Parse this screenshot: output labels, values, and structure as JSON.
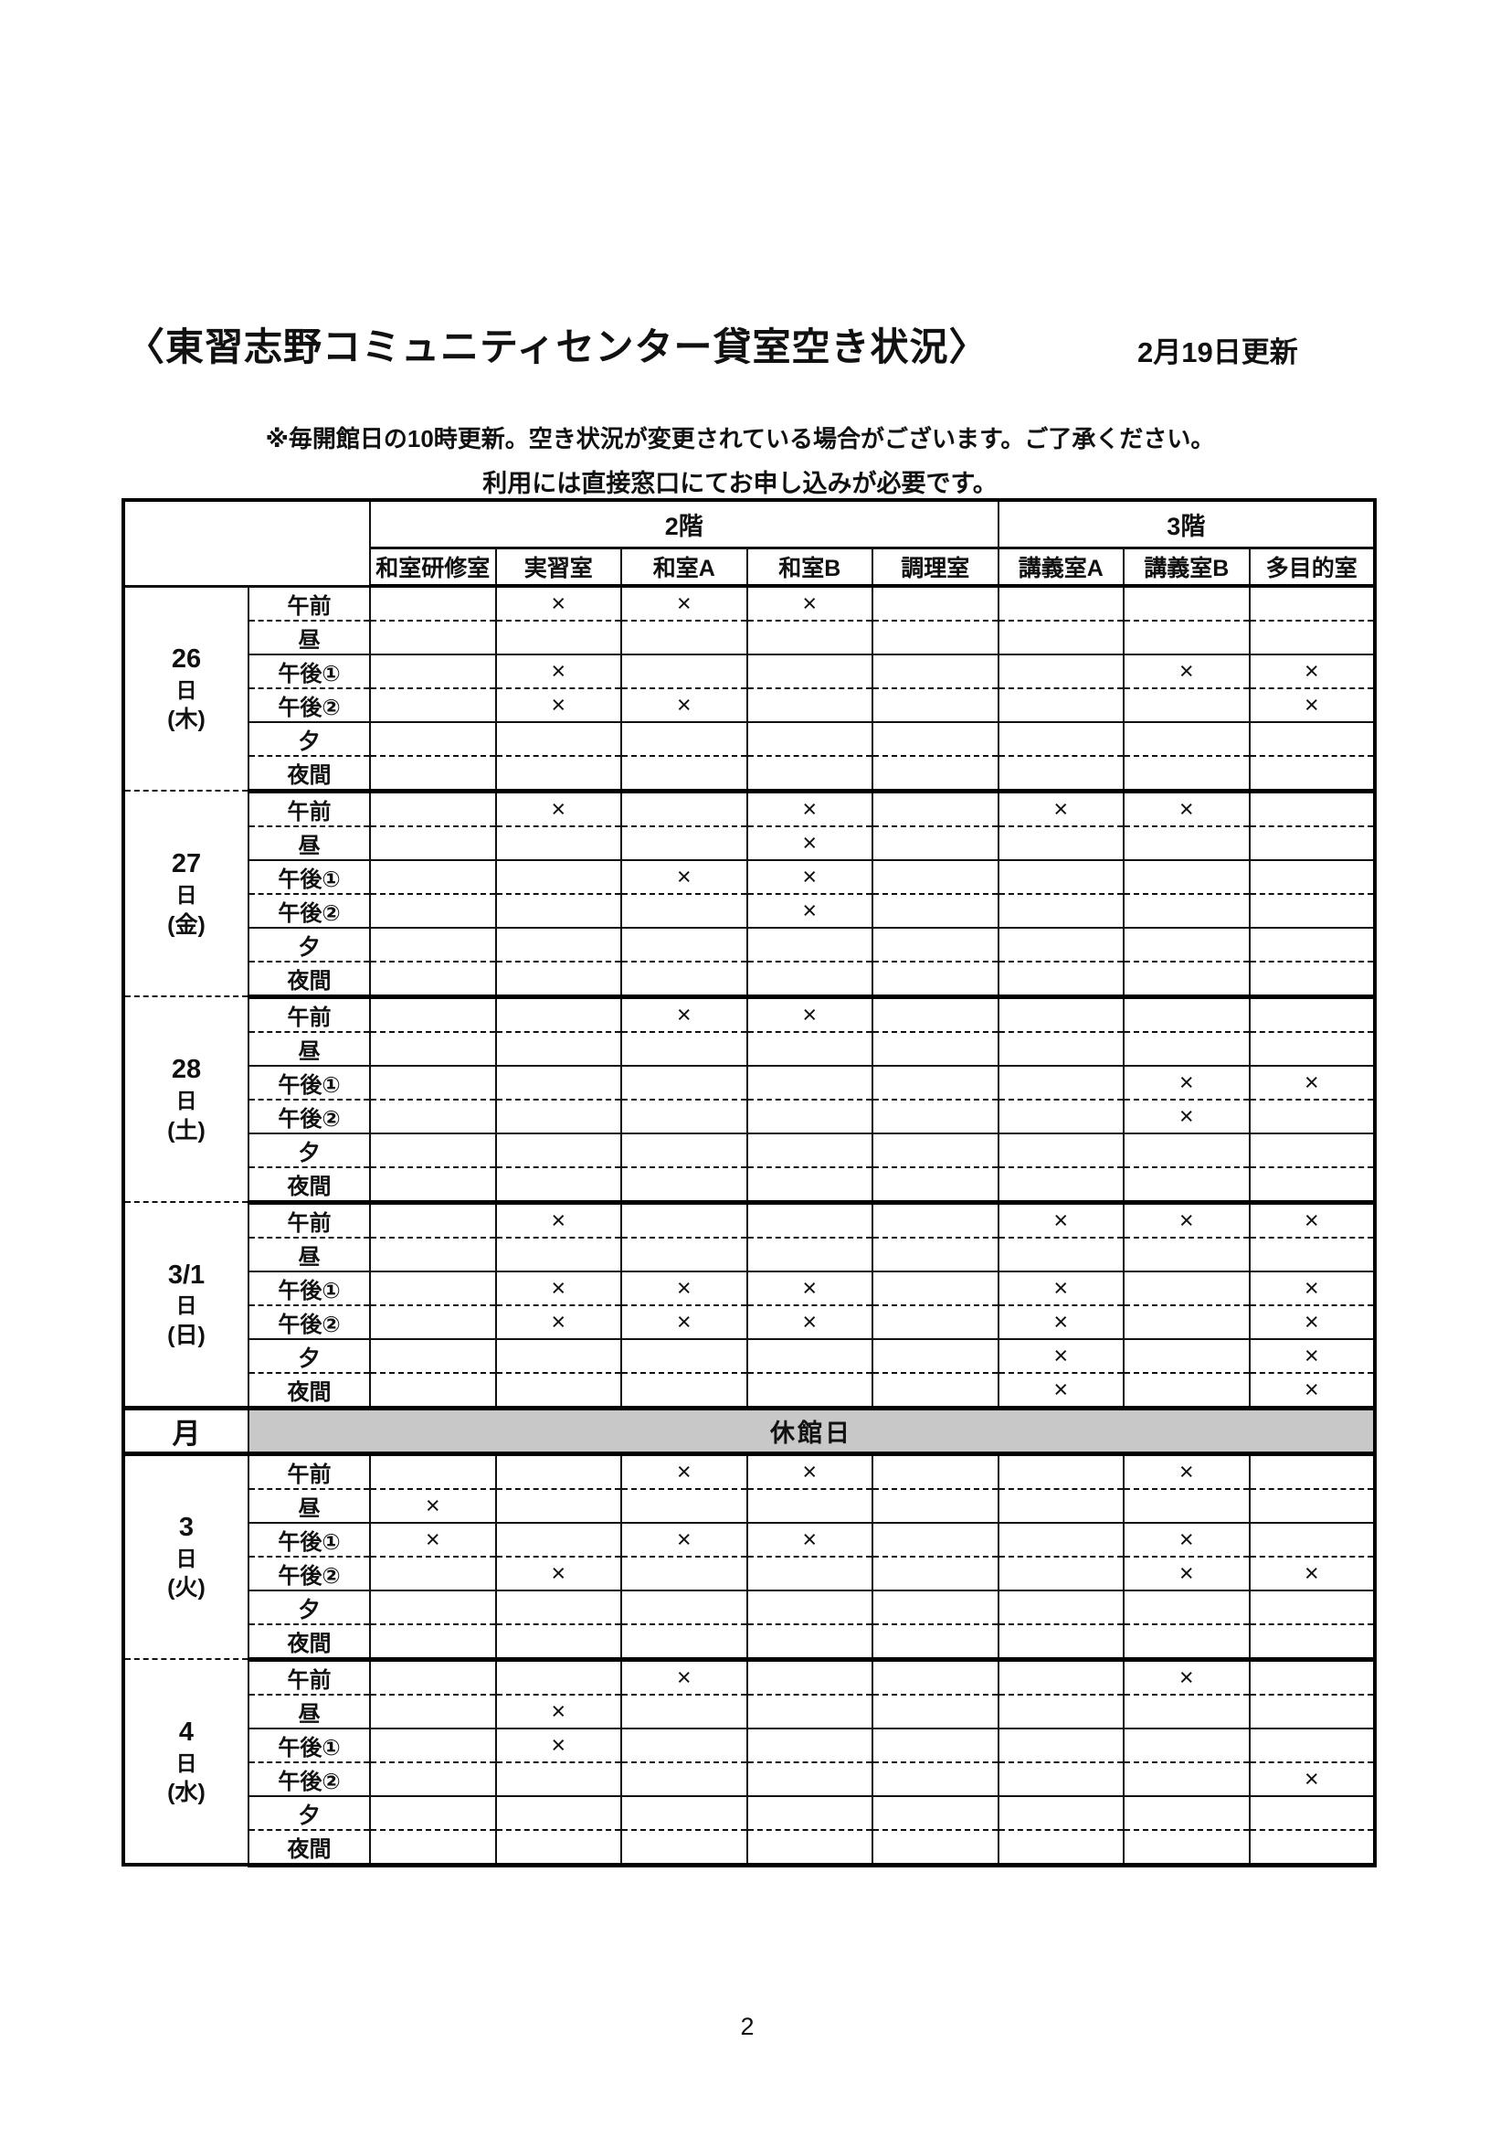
{
  "page": {
    "title": "〈東習志野コミュニティセンター貸室空き状況〉",
    "updated": "2月19日更新",
    "note1": "※毎開館日の10時更新。空き状況が変更されている場合がございます。ご了承ください。",
    "note2": "利用には直接窓口にてお申し込みが必要です。",
    "page_number": "2"
  },
  "table": {
    "floor_groups": [
      {
        "label": "2階",
        "span": 5
      },
      {
        "label": "3階",
        "span": 3
      }
    ],
    "rooms": [
      "和室研修室",
      "実習室",
      "和室A",
      "和室B",
      "調理室",
      "講義室A",
      "講義室B",
      "多目的室"
    ],
    "time_slots": [
      "午前",
      "昼",
      "午後①",
      "午後②",
      "夕",
      "夜間"
    ],
    "mark": "×",
    "days": [
      {
        "type": "open",
        "date": "26",
        "suffix": "日",
        "weekday": "(木)",
        "slots": [
          [
            "",
            "×",
            "×",
            "×",
            "",
            "",
            "",
            ""
          ],
          [
            "",
            "",
            "",
            "",
            "",
            "",
            "",
            ""
          ],
          [
            "",
            "×",
            "",
            "",
            "",
            "",
            "×",
            "×"
          ],
          [
            "",
            "×",
            "×",
            "",
            "",
            "",
            "",
            "×"
          ],
          [
            "",
            "",
            "",
            "",
            "",
            "",
            "",
            ""
          ],
          [
            "",
            "",
            "",
            "",
            "",
            "",
            "",
            ""
          ]
        ]
      },
      {
        "type": "open",
        "date": "27",
        "suffix": "日",
        "weekday": "(金)",
        "slots": [
          [
            "",
            "×",
            "",
            "×",
            "",
            "×",
            "×",
            ""
          ],
          [
            "",
            "",
            "",
            "×",
            "",
            "",
            "",
            ""
          ],
          [
            "",
            "",
            "×",
            "×",
            "",
            "",
            "",
            ""
          ],
          [
            "",
            "",
            "",
            "×",
            "",
            "",
            "",
            ""
          ],
          [
            "",
            "",
            "",
            "",
            "",
            "",
            "",
            ""
          ],
          [
            "",
            "",
            "",
            "",
            "",
            "",
            "",
            ""
          ]
        ]
      },
      {
        "type": "open",
        "date": "28",
        "suffix": "日",
        "weekday": "(土)",
        "slots": [
          [
            "",
            "",
            "×",
            "×",
            "",
            "",
            "",
            ""
          ],
          [
            "",
            "",
            "",
            "",
            "",
            "",
            "",
            ""
          ],
          [
            "",
            "",
            "",
            "",
            "",
            "",
            "×",
            "×"
          ],
          [
            "",
            "",
            "",
            "",
            "",
            "",
            "×",
            ""
          ],
          [
            "",
            "",
            "",
            "",
            "",
            "",
            "",
            ""
          ],
          [
            "",
            "",
            "",
            "",
            "",
            "",
            "",
            ""
          ]
        ]
      },
      {
        "type": "open",
        "date": "3/1",
        "suffix": "日",
        "weekday": "(日)",
        "slots": [
          [
            "",
            "×",
            "",
            "",
            "",
            "×",
            "×",
            "×"
          ],
          [
            "",
            "",
            "",
            "",
            "",
            "",
            "",
            ""
          ],
          [
            "",
            "×",
            "×",
            "×",
            "",
            "×",
            "",
            "×"
          ],
          [
            "",
            "×",
            "×",
            "×",
            "",
            "×",
            "",
            "×"
          ],
          [
            "",
            "",
            "",
            "",
            "",
            "×",
            "",
            "×"
          ],
          [
            "",
            "",
            "",
            "",
            "",
            "×",
            "",
            "×"
          ]
        ]
      },
      {
        "type": "closed",
        "date": "月",
        "label": "休館日"
      },
      {
        "type": "open",
        "date": "3",
        "suffix": "日",
        "weekday": "(火)",
        "slots": [
          [
            "",
            "",
            "×",
            "×",
            "",
            "",
            "×",
            ""
          ],
          [
            "×",
            "",
            "",
            "",
            "",
            "",
            "",
            ""
          ],
          [
            "×",
            "",
            "×",
            "×",
            "",
            "",
            "×",
            ""
          ],
          [
            "",
            "×",
            "",
            "",
            "",
            "",
            "×",
            "×"
          ],
          [
            "",
            "",
            "",
            "",
            "",
            "",
            "",
            ""
          ],
          [
            "",
            "",
            "",
            "",
            "",
            "",
            "",
            ""
          ]
        ]
      },
      {
        "type": "open",
        "date": "4",
        "suffix": "日",
        "weekday": "(水)",
        "slots": [
          [
            "",
            "",
            "×",
            "",
            "",
            "",
            "×",
            ""
          ],
          [
            "",
            "×",
            "",
            "",
            "",
            "",
            "",
            ""
          ],
          [
            "",
            "×",
            "",
            "",
            "",
            "",
            "",
            ""
          ],
          [
            "",
            "",
            "",
            "",
            "",
            "",
            "",
            "×"
          ],
          [
            "",
            "",
            "",
            "",
            "",
            "",
            "",
            ""
          ],
          [
            "",
            "",
            "",
            "",
            "",
            "",
            "",
            ""
          ]
        ]
      }
    ]
  }
}
